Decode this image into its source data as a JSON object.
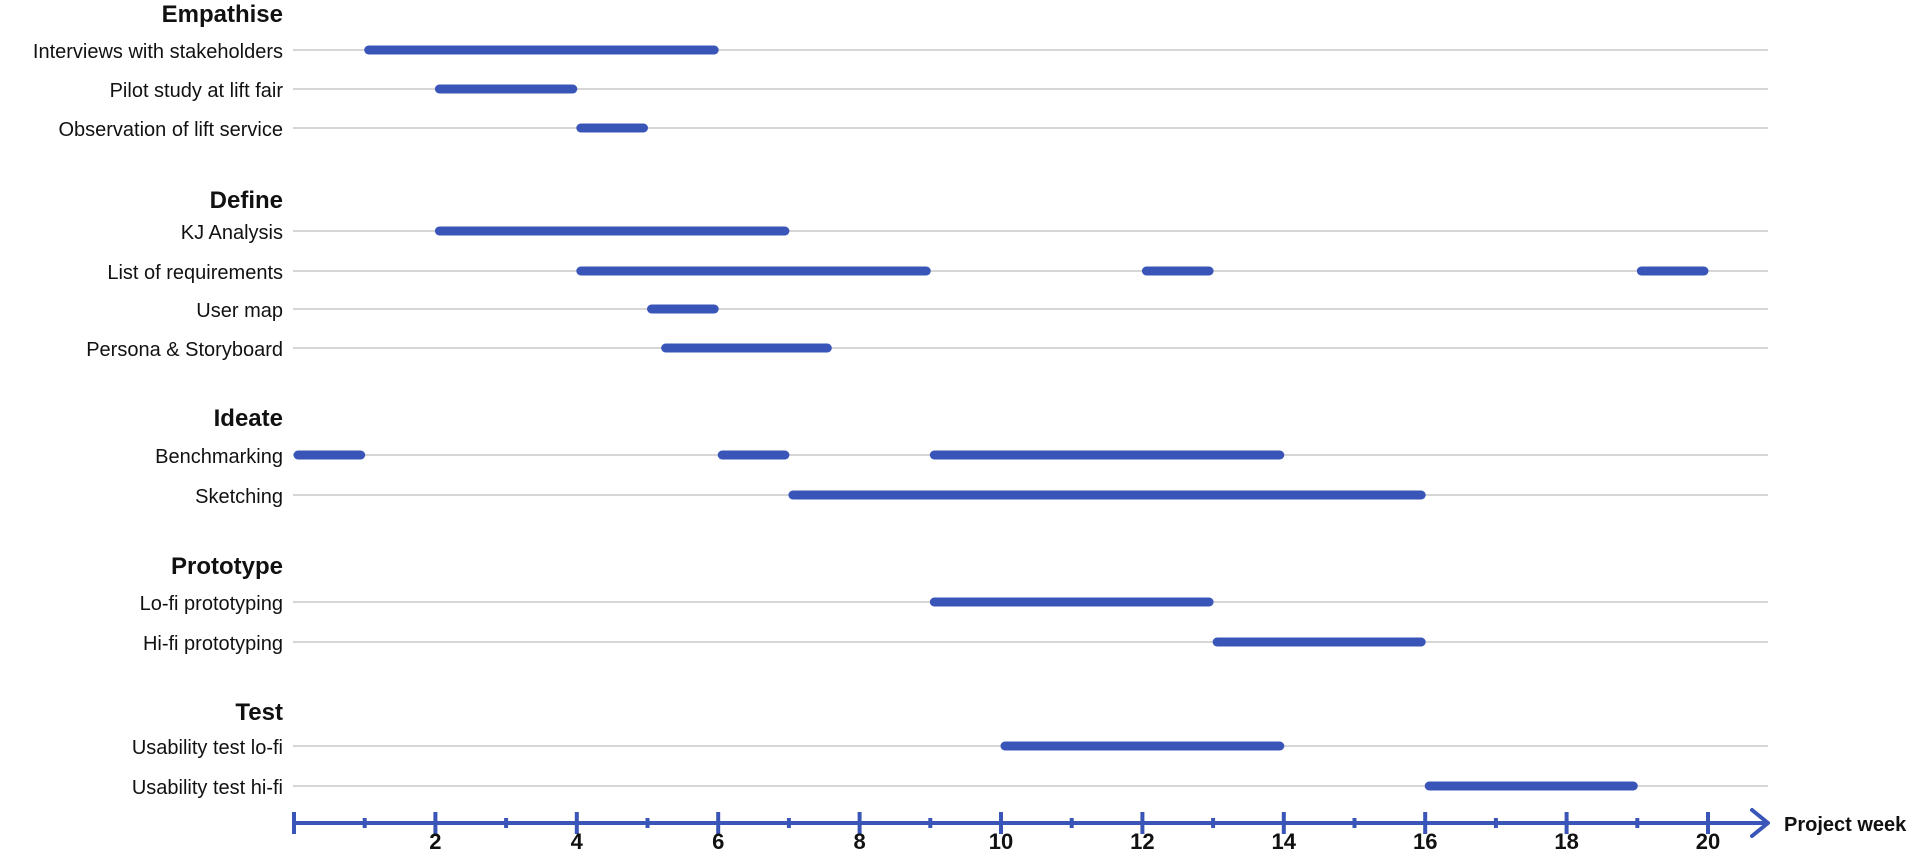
{
  "chart_data": {
    "type": "gantt",
    "xlabel": "Project week",
    "xlim": [
      0,
      21
    ],
    "major_ticks": [
      2,
      4,
      6,
      8,
      10,
      12,
      14,
      16,
      18,
      20
    ],
    "minor_ticks": [
      1,
      3,
      5,
      7,
      9,
      11,
      13,
      15,
      17,
      19
    ],
    "bar_color": "#3a55b8",
    "grid_color": "#c9c9c9",
    "groups": [
      {
        "name": "Empathise",
        "tasks": [
          {
            "label": "Interviews with stakeholders",
            "spans": [
              [
                1,
                6
              ]
            ]
          },
          {
            "label": "Pilot study at lift fair",
            "spans": [
              [
                2,
                4
              ]
            ]
          },
          {
            "label": "Observation of lift service",
            "spans": [
              [
                4,
                5
              ]
            ]
          }
        ]
      },
      {
        "name": "Define",
        "tasks": [
          {
            "label": "KJ Analysis",
            "spans": [
              [
                2,
                7
              ]
            ]
          },
          {
            "label": "List of requirements",
            "spans": [
              [
                4,
                9
              ],
              [
                12,
                13
              ],
              [
                19,
                20
              ]
            ]
          },
          {
            "label": "User map",
            "spans": [
              [
                5,
                6
              ]
            ]
          },
          {
            "label": "Persona & Storyboard",
            "spans": [
              [
                5.2,
                7.6
              ]
            ]
          }
        ]
      },
      {
        "name": "Ideate",
        "tasks": [
          {
            "label": "Benchmarking",
            "spans": [
              [
                0,
                1
              ],
              [
                6,
                7
              ],
              [
                9,
                14
              ]
            ]
          },
          {
            "label": "Sketching",
            "spans": [
              [
                7,
                16
              ]
            ]
          }
        ]
      },
      {
        "name": "Prototype",
        "tasks": [
          {
            "label": "Lo-fi prototyping",
            "spans": [
              [
                9,
                13
              ]
            ]
          },
          {
            "label": "Hi-fi prototyping",
            "spans": [
              [
                13,
                16
              ]
            ]
          }
        ]
      },
      {
        "name": "Test",
        "tasks": [
          {
            "label": "Usability test lo-fi",
            "spans": [
              [
                10,
                14
              ]
            ]
          },
          {
            "label": "Usability test hi-fi",
            "spans": [
              [
                16,
                19
              ]
            ]
          }
        ]
      }
    ]
  }
}
